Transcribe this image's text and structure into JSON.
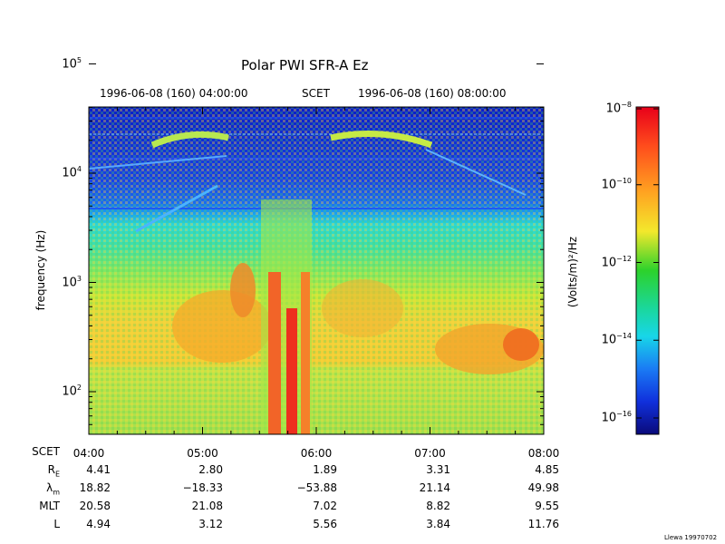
{
  "chart_data": {
    "type": "heatmap",
    "title": "Polar PWI SFR-A Ez",
    "top_axis": {
      "start_label": "1996-06-08 (160) 04:00:00",
      "center_label": "SCET",
      "end_label": "1996-06-08 (160) 08:00:00"
    },
    "ylabel": "frequency (Hz)",
    "y_scale": "log",
    "y_ticks": [
      {
        "base": "10",
        "exp": "2"
      },
      {
        "base": "10",
        "exp": "3"
      },
      {
        "base": "10",
        "exp": "4"
      },
      {
        "base": "10",
        "exp": "5"
      }
    ],
    "x_ticks": [
      "04:00",
      "05:00",
      "06:00",
      "07:00",
      "08:00"
    ],
    "colorbar": {
      "label": "(Volts/m)²/Hz",
      "scale": "log",
      "ticks": [
        {
          "base": "10",
          "exp": "−8"
        },
        {
          "base": "10",
          "exp": "−10"
        },
        {
          "base": "10",
          "exp": "−12"
        },
        {
          "base": "10",
          "exp": "−14"
        },
        {
          "base": "10",
          "exp": "−16"
        }
      ]
    },
    "ephemeris": {
      "row_labels": [
        "SCET",
        "R",
        "λ",
        "MLT",
        "L"
      ],
      "row_label_subscripts": [
        "",
        "E",
        "m",
        "",
        ""
      ],
      "rows": [
        [
          "4.41",
          "2.80",
          "1.89",
          "3.31",
          "4.85"
        ],
        [
          "18.82",
          "−18.33",
          "−53.88",
          "21.14",
          "49.98"
        ],
        [
          "20.58",
          "21.08",
          "7.02",
          "8.82",
          "9.55"
        ],
        [
          "4.94",
          "3.12",
          "5.56",
          "3.84",
          "11.76"
        ]
      ]
    }
  },
  "credit": "Llewa 19970702"
}
